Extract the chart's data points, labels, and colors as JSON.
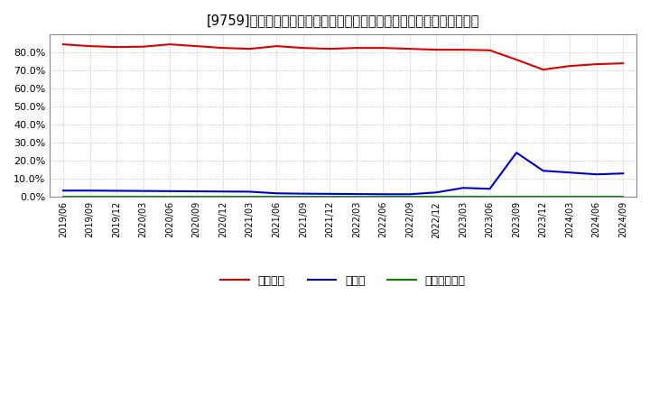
{
  "title": "[9759]　自己資本、のれん、繰延税金資産の総資産に対する比率の推移",
  "background_color": "#ffffff",
  "plot_bg_color": "#ffffff",
  "grid_color": "#aaaaaa",
  "x_labels": [
    "2019/06",
    "2019/09",
    "2019/12",
    "2020/03",
    "2020/06",
    "2020/09",
    "2020/12",
    "2021/03",
    "2021/06",
    "2021/09",
    "2021/12",
    "2022/03",
    "2022/06",
    "2022/09",
    "2022/12",
    "2023/03",
    "2023/06",
    "2023/09",
    "2023/12",
    "2024/03",
    "2024/06",
    "2024/09"
  ],
  "jikoshihon": [
    84.5,
    83.5,
    83.0,
    83.2,
    84.5,
    83.5,
    82.5,
    82.0,
    83.5,
    82.5,
    82.0,
    82.5,
    82.5,
    82.0,
    81.5,
    81.5,
    81.2,
    76.0,
    70.5,
    72.5,
    73.5,
    74.0
  ],
  "noren": [
    3.5,
    3.5,
    3.4,
    3.3,
    3.2,
    3.1,
    3.0,
    2.9,
    2.0,
    1.8,
    1.7,
    1.6,
    1.5,
    1.5,
    2.5,
    5.0,
    4.5,
    24.5,
    14.5,
    13.5,
    12.5,
    13.0
  ],
  "kurinoze": [
    0.0,
    0.0,
    0.0,
    0.0,
    0.0,
    0.0,
    0.0,
    0.0,
    0.0,
    0.0,
    0.0,
    0.0,
    0.0,
    0.0,
    0.0,
    0.0,
    0.0,
    0.0,
    0.0,
    0.0,
    0.0,
    0.0
  ],
  "line_colors": {
    "jikoshihon": "#dd0000",
    "noren": "#0000cc",
    "kurinoze": "#008800"
  },
  "ylim": [
    0,
    90
  ],
  "yticks": [
    0,
    10,
    20,
    30,
    40,
    50,
    60,
    70,
    80
  ],
  "legend_labels": {
    "jikoshihon": "自己資本",
    "noren": "のれん",
    "kurinoze": "繰延税金資産"
  }
}
